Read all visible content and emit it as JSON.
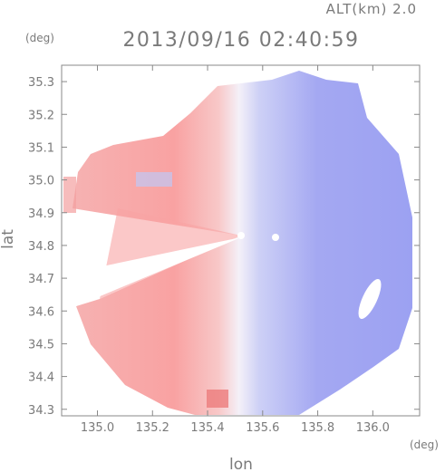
{
  "chart_data": {
    "type": "heatmap",
    "title": "2013/09/16 02:40:59",
    "subtitle": "ALT(km) 2.0",
    "xlabel": "lon",
    "ylabel": "lat",
    "x_unit": "(deg)",
    "y_unit": "(deg)",
    "xlim": [
      134.87,
      136.17
    ],
    "ylim": [
      34.28,
      35.35
    ],
    "x_ticks": [
      135.0,
      135.2,
      135.4,
      135.6,
      135.8,
      136.0
    ],
    "x_tick_labels": [
      "135.0",
      "135.2",
      "135.4",
      "135.6",
      "135.8",
      "136.0"
    ],
    "y_ticks": [
      34.3,
      34.4,
      34.5,
      34.6,
      34.7,
      34.8,
      34.9,
      35.0,
      35.1,
      35.2,
      35.3
    ],
    "y_tick_labels": [
      "34.3",
      "34.4",
      "34.5",
      "34.6",
      "34.7",
      "34.8",
      "34.9",
      "35.0",
      "35.1",
      "35.2",
      "35.3"
    ],
    "radar_center": [
      135.52,
      34.81
    ],
    "colors": {
      "toward": "#f7a0a0",
      "away": "#9da2f2",
      "neutral": "#f4f0f8",
      "axis": "#888888",
      "text": "#7a7a7a"
    }
  }
}
